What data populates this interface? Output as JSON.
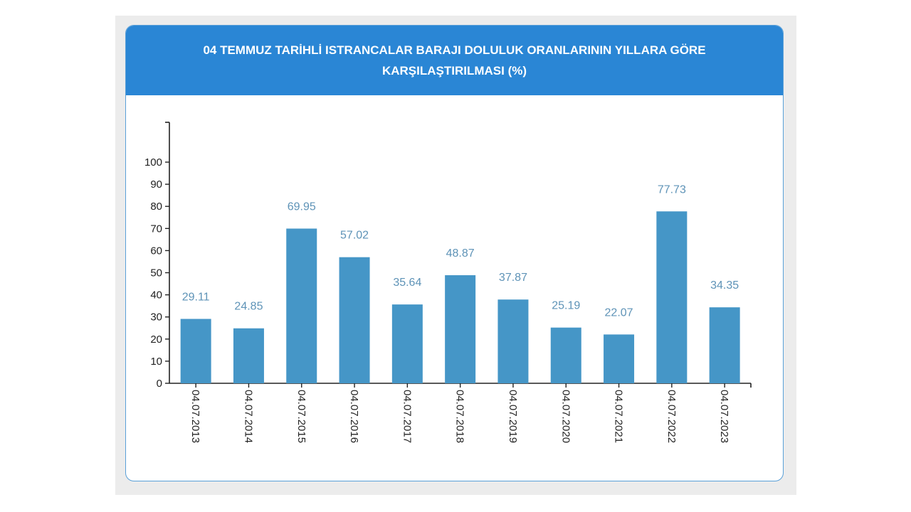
{
  "chart_data": {
    "type": "bar",
    "title": "04 TEMMUZ TARİHLİ ISTRANCALAR BARAJI DOLULUK ORANLARININ YILLARA GÖRE KARŞILAŞTIRILMASI (%)",
    "categories": [
      "04.07.2013",
      "04.07.2014",
      "04.07.2015",
      "04.07.2016",
      "04.07.2017",
      "04.07.2018",
      "04.07.2019",
      "04.07.2020",
      "04.07.2021",
      "04.07.2022",
      "04.07.2023"
    ],
    "values": [
      29.11,
      24.85,
      69.95,
      57.02,
      35.64,
      48.87,
      37.87,
      25.19,
      22.07,
      77.73,
      34.35
    ],
    "value_labels": [
      "29.11",
      "24.85",
      "69.95",
      "57.02",
      "35.64",
      "48.87",
      "37.87",
      "25.19",
      "22.07",
      "77.73",
      "34.35"
    ],
    "y_ticks": [
      "0",
      "10",
      "20",
      "30",
      "40",
      "50",
      "60",
      "70",
      "80",
      "90",
      "100"
    ],
    "ylim": [
      0,
      100
    ],
    "xlabel": "",
    "ylabel": "",
    "grid": false,
    "colors": {
      "bar": "#4596c7",
      "value_label": "#5e93b7",
      "header": "#2a86d5",
      "axis": "#222222",
      "tick_label": "#222222"
    }
  }
}
